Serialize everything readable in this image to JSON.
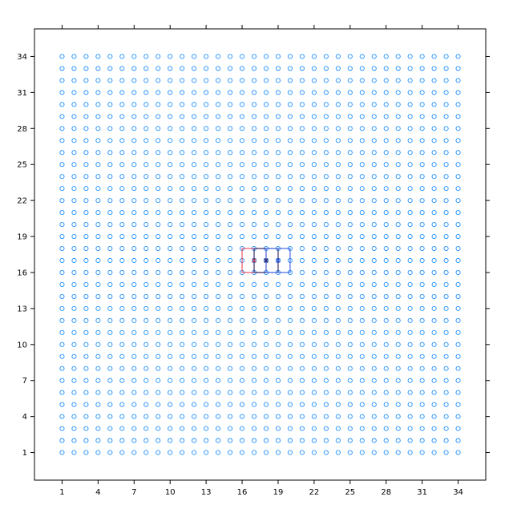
{
  "chart_data": {
    "type": "scatter",
    "title": "",
    "xlabel": "",
    "ylabel": "",
    "xlim": [
      -1.3,
      36.3
    ],
    "ylim": [
      -1.3,
      36.3
    ],
    "x_ticks": [
      "1",
      "4",
      "7",
      "10",
      "13",
      "16",
      "19",
      "22",
      "25",
      "28",
      "31",
      "34"
    ],
    "y_ticks": [
      "1",
      "4",
      "7",
      "10",
      "13",
      "16",
      "19",
      "22",
      "25",
      "28",
      "31",
      "34"
    ],
    "grid": false,
    "legend": "none",
    "grid_points": {
      "x_range": [
        1,
        34
      ],
      "y_range": [
        1,
        34
      ],
      "step": 1,
      "marker": "open-circle",
      "color": "#1E90FF"
    },
    "highlight_rects": [
      {
        "x": [
          16,
          18
        ],
        "y": [
          16,
          18
        ],
        "color": "#E8475F"
      },
      {
        "x": [
          17,
          19
        ],
        "y": [
          16,
          18
        ],
        "color": "#2B1A5E"
      },
      {
        "x": [
          18,
          20
        ],
        "y": [
          16,
          18
        ],
        "color": "#3C5CE0"
      }
    ],
    "highlight_points": [
      {
        "x": 17,
        "y": 17,
        "marker": "x",
        "color": "#C4405E"
      },
      {
        "x": 18,
        "y": 17,
        "marker": "x",
        "color": "#2B1A5E"
      },
      {
        "x": 19,
        "y": 17,
        "marker": "x",
        "color": "#3C5CE0"
      }
    ]
  }
}
